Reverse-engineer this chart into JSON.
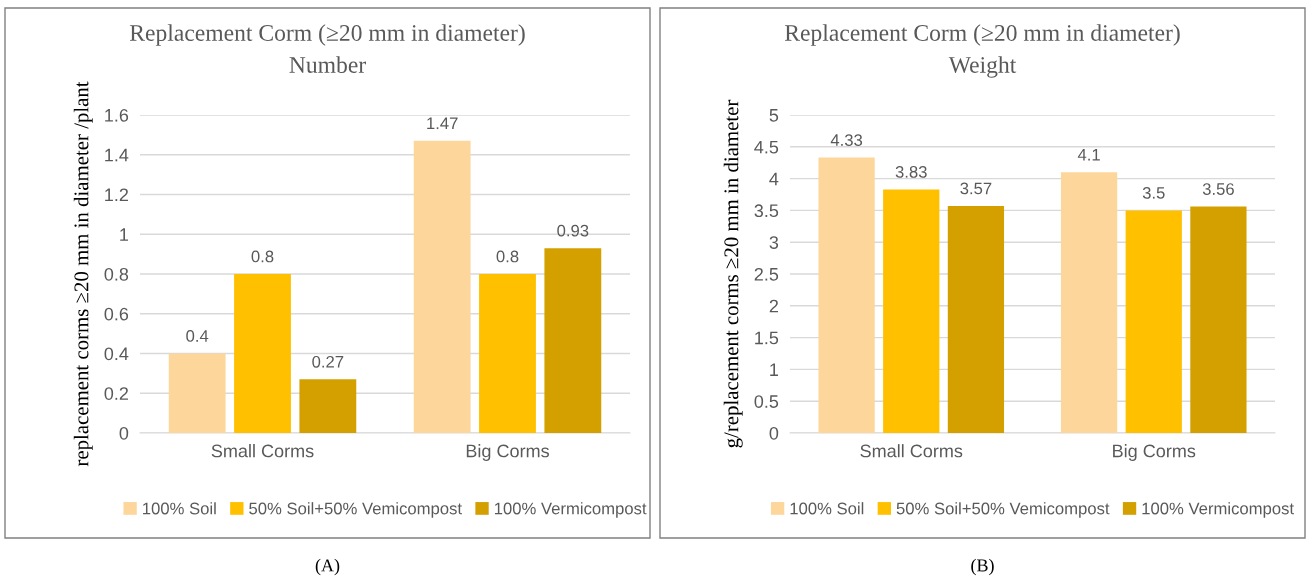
{
  "chart_data": [
    {
      "type": "bar",
      "title": "Replacement Corm (≥20 mm in diameter)",
      "subtitle": "Number",
      "ylabel": "replacement corms ≥20 mm in diameter /plant",
      "categories": [
        "Small Corms",
        "Big Corms"
      ],
      "series": [
        {
          "name": "100% Soil",
          "color": "#fdd69b",
          "values": [
            0.4,
            1.47
          ]
        },
        {
          "name": "50% Soil+50% Vemicompost",
          "color": "#ffc000",
          "values": [
            0.8,
            0.8
          ]
        },
        {
          "name": "100% Vermicompost",
          "color": "#d4a000",
          "values": [
            0.27,
            0.93
          ]
        }
      ],
      "ylim": [
        0,
        1.6
      ],
      "yticks": [
        0,
        0.2,
        0.4,
        0.6,
        0.8,
        1,
        1.2,
        1.4,
        1.6
      ],
      "grid": "y",
      "legend": "bottom",
      "data_labels": true,
      "annotations": [
        "(A)"
      ]
    },
    {
      "type": "bar",
      "title": "Replacement Corm (≥20 mm in diameter)",
      "subtitle": "Weight",
      "ylabel": "g/replacement corms ≥20 mm in diameter",
      "categories": [
        "Small Corms",
        "Big Corms"
      ],
      "series": [
        {
          "name": "100% Soil",
          "color": "#fdd69b",
          "values": [
            4.33,
            4.1
          ]
        },
        {
          "name": "50% Soil+50% Vemicompost",
          "color": "#ffc000",
          "values": [
            3.83,
            3.5
          ]
        },
        {
          "name": "100% Vermicompost",
          "color": "#d4a000",
          "values": [
            3.57,
            3.56
          ]
        }
      ],
      "ylim": [
        0,
        5
      ],
      "yticks": [
        0,
        0.5,
        1,
        1.5,
        2,
        2.5,
        3,
        3.5,
        4,
        4.5,
        5
      ],
      "grid": "y",
      "legend": "bottom",
      "data_labels": true,
      "annotations": [
        "(B)"
      ]
    }
  ]
}
